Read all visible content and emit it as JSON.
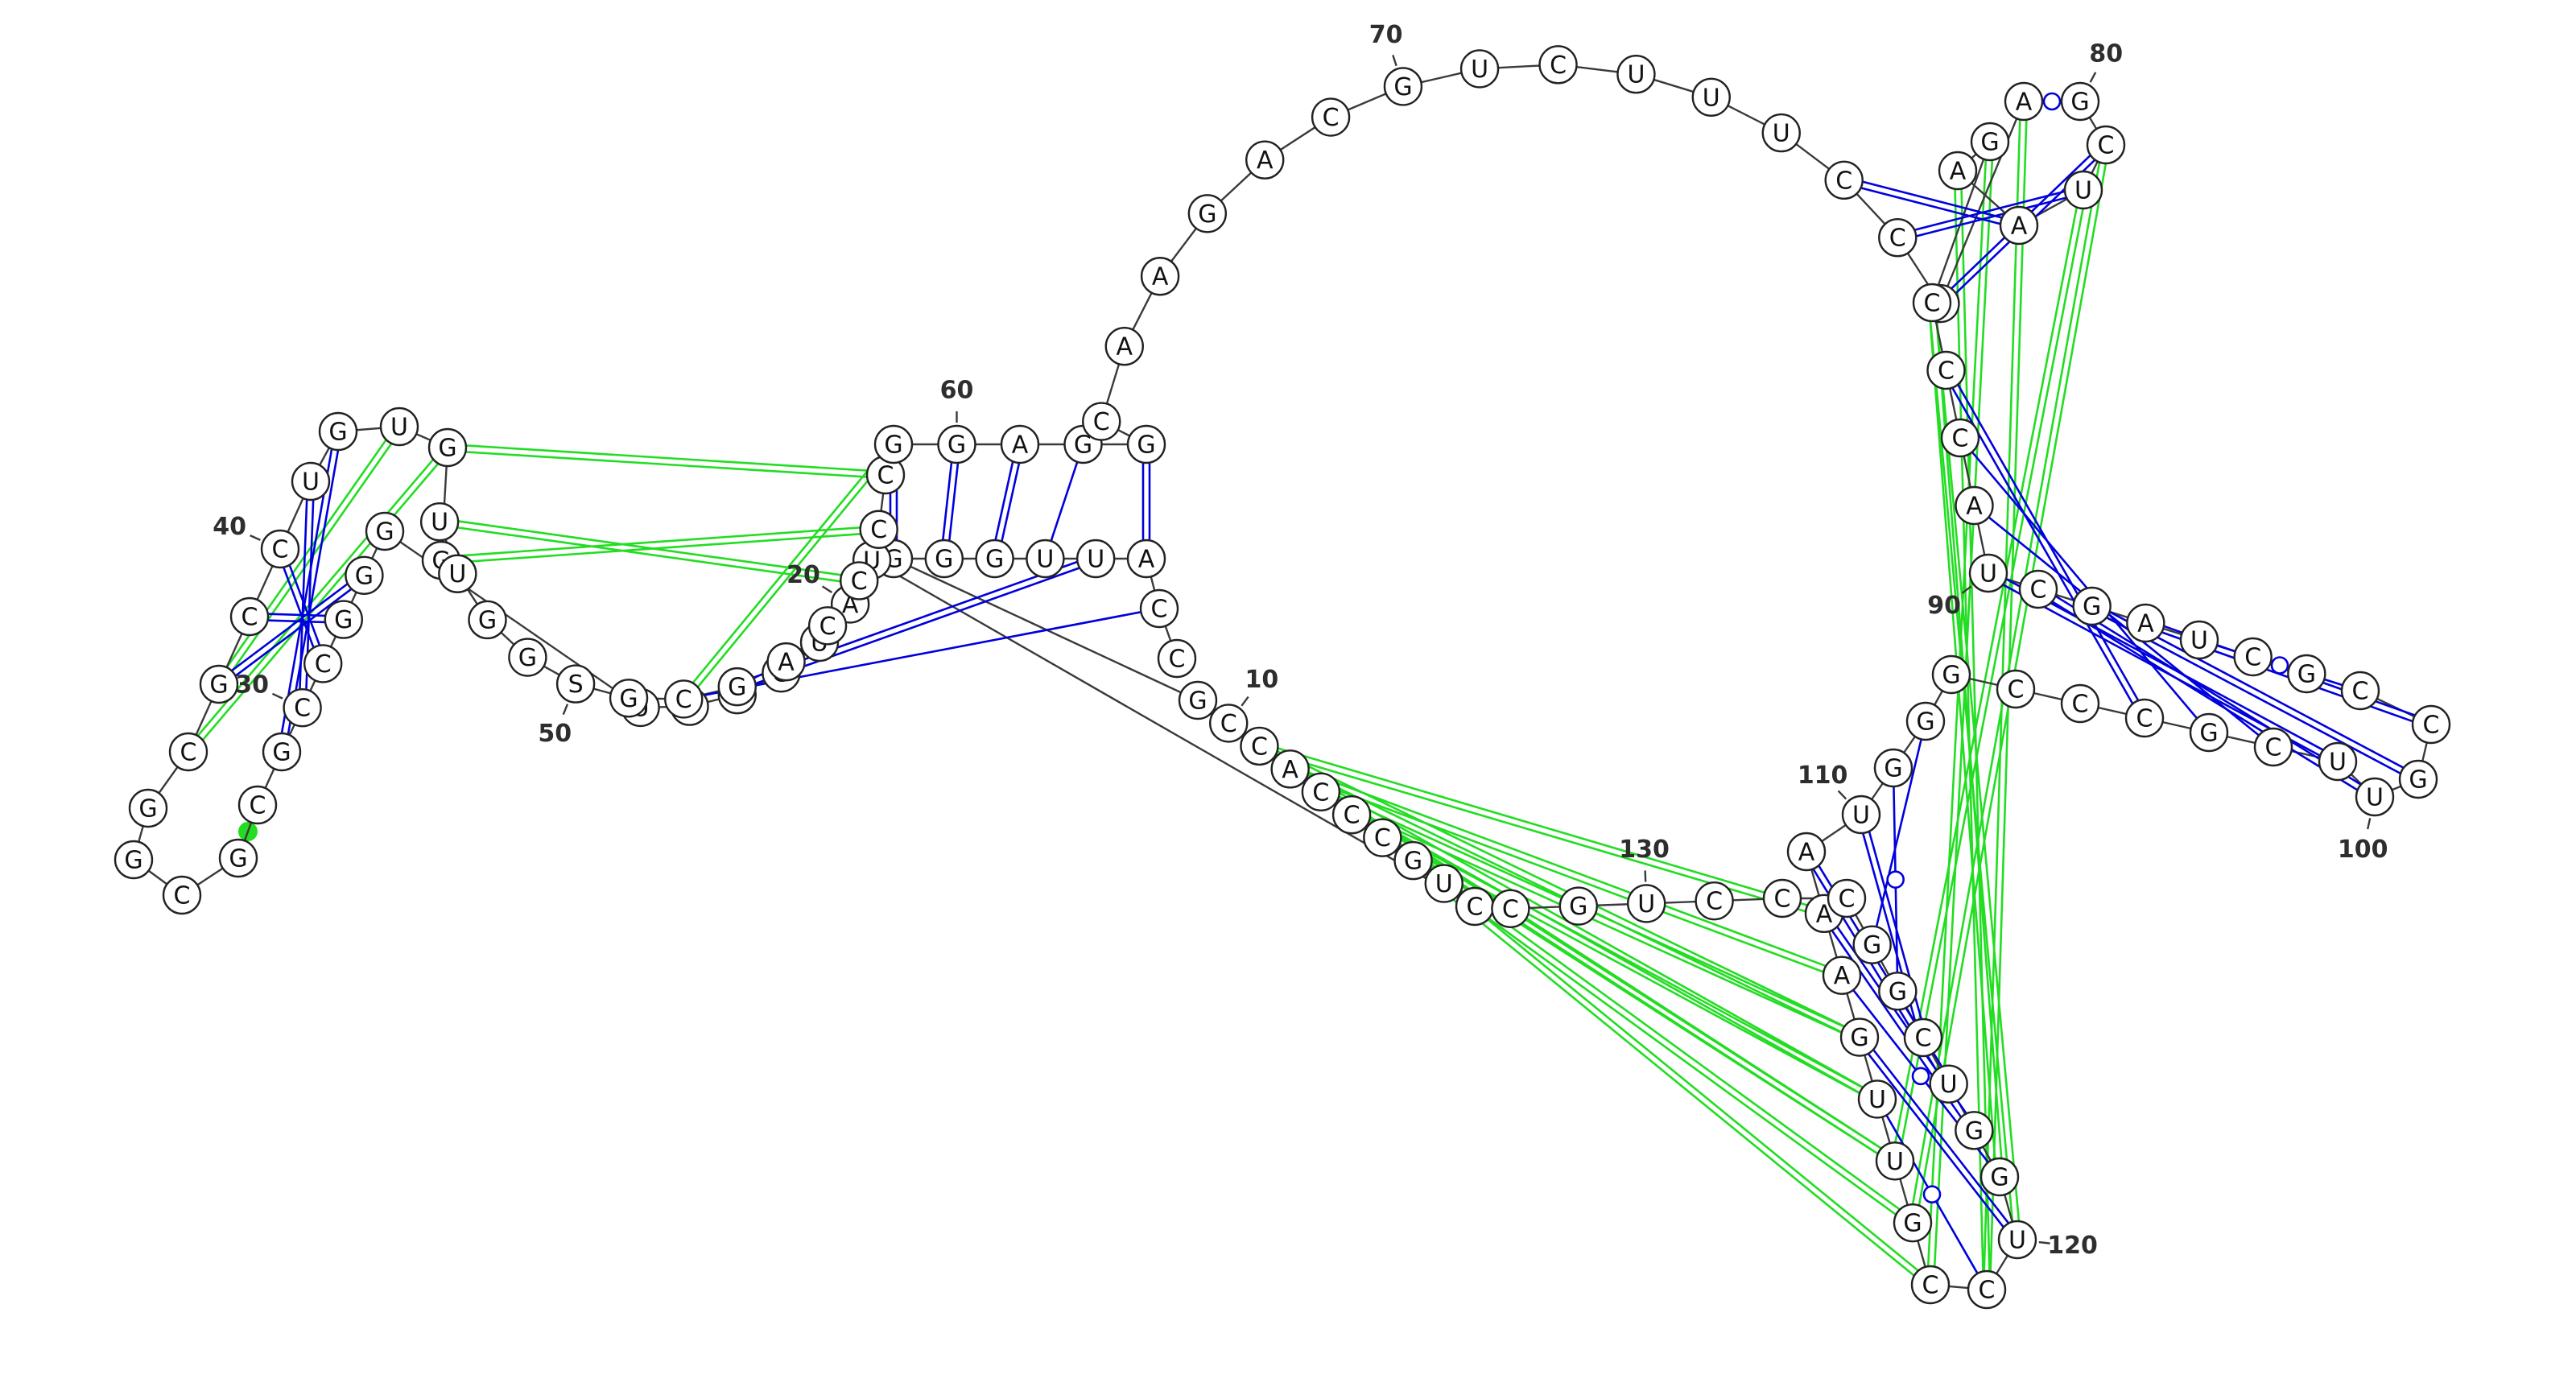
{
  "colors": {
    "background": "#ffffff",
    "backbone": "#3a3a3a",
    "secondary_pair": "#0000dd",
    "tertiary_pair": "#22dd22",
    "nucleotide_fill": "#ffffff",
    "nucleotide_stroke": "#222222"
  },
  "sequence": "CCAUUGGGGCCACCCGUCUAUGUUUGGGCCGCGCGGCGCCUGUGGUUGGSGCGACCCCGGAGGCAAGACGUCUUUCCUAGCUAAGCCCAUCGAUCGCCGUUCGCCCGGGUAAAGUUGCCUGGUCGGCCCUGC",
  "position_labels": [
    {
      "n": 10,
      "text": "10"
    },
    {
      "n": 20,
      "text": "20"
    },
    {
      "n": 30,
      "text": "30"
    },
    {
      "n": 40,
      "text": "40"
    },
    {
      "n": 50,
      "text": "50"
    },
    {
      "n": 60,
      "text": "60"
    },
    {
      "n": 70,
      "text": "70"
    },
    {
      "n": 80,
      "text": "80"
    },
    {
      "n": 90,
      "text": "90"
    },
    {
      "n": 100,
      "text": "100"
    },
    {
      "n": 110,
      "text": "110"
    },
    {
      "n": 120,
      "text": "120"
    },
    {
      "n": 130,
      "text": "130"
    }
  ],
  "secondary_pairs": [
    {
      "i": 2,
      "j": 52,
      "type": "single"
    },
    {
      "i": 3,
      "j": 63,
      "type": "double"
    },
    {
      "i": 4,
      "j": 53,
      "type": "double"
    },
    {
      "i": 5,
      "j": 62,
      "type": "single"
    },
    {
      "i": 6,
      "j": 61,
      "type": "double"
    },
    {
      "i": 7,
      "j": 60,
      "type": "double"
    },
    {
      "i": 8,
      "j": 59,
      "type": "double"
    },
    {
      "i": 27,
      "j": 38,
      "type": "double"
    },
    {
      "i": 28,
      "j": 39,
      "type": "double"
    },
    {
      "i": 29,
      "j": 40,
      "type": "double"
    },
    {
      "i": 30,
      "j": 41,
      "type": "double"
    },
    {
      "i": 31,
      "j": 42,
      "type": "double"
    },
    {
      "i": 76,
      "j": 83,
      "type": "double"
    },
    {
      "i": 77,
      "j": 82,
      "type": "double"
    },
    {
      "i": 78,
      "j": 81,
      "type": "double"
    },
    {
      "i": 79,
      "j": 80,
      "type": "wobble"
    },
    {
      "i": 87,
      "j": 104,
      "type": "double"
    },
    {
      "i": 88,
      "j": 103,
      "type": "single"
    },
    {
      "i": 89,
      "j": 102,
      "type": "single"
    },
    {
      "i": 90,
      "j": 101,
      "type": "double"
    },
    {
      "i": 91,
      "j": 100,
      "type": "double"
    },
    {
      "i": 92,
      "j": 99,
      "type": "double"
    },
    {
      "i": 93,
      "j": 98,
      "type": "double"
    },
    {
      "i": 94,
      "j": 97,
      "type": "wobble"
    },
    {
      "i": 108,
      "j": 126,
      "type": "single"
    },
    {
      "i": 109,
      "j": 125,
      "type": "wobble"
    },
    {
      "i": 110,
      "j": 124,
      "type": "double"
    },
    {
      "i": 111,
      "j": 123,
      "type": "double"
    },
    {
      "i": 112,
      "j": 122,
      "type": "double"
    },
    {
      "i": 113,
      "j": 121,
      "type": "wobble"
    },
    {
      "i": 114,
      "j": 120,
      "type": "double"
    },
    {
      "i": 115,
      "j": 119,
      "type": "wobble"
    }
  ],
  "tertiary_pairs": [
    {
      "i": 11,
      "j": 112,
      "type": "double"
    },
    {
      "i": 11,
      "j": 114,
      "type": "double"
    },
    {
      "i": 12,
      "j": 113,
      "type": "double"
    },
    {
      "i": 12,
      "j": 115,
      "type": "double"
    },
    {
      "i": 12,
      "j": 116,
      "type": "double"
    },
    {
      "i": 13,
      "j": 114,
      "type": "double"
    },
    {
      "i": 13,
      "j": 116,
      "type": "double"
    },
    {
      "i": 14,
      "j": 117,
      "type": "double"
    },
    {
      "i": 15,
      "j": 118,
      "type": "double"
    },
    {
      "i": 14,
      "j": 115,
      "type": "double"
    },
    {
      "i": 37,
      "j": 44,
      "type": "double"
    },
    {
      "i": 38,
      "j": 43,
      "type": "double"
    },
    {
      "i": 45,
      "j": 57,
      "type": "double"
    },
    {
      "i": 46,
      "j": 56,
      "type": "double"
    },
    {
      "i": 44,
      "j": 58,
      "type": "double"
    },
    {
      "i": 52,
      "j": 59,
      "type": "double"
    },
    {
      "i": 84,
      "j": 119,
      "type": "double"
    },
    {
      "i": 85,
      "j": 118,
      "type": "double"
    },
    {
      "i": 86,
      "j": 120,
      "type": "double"
    },
    {
      "i": 86,
      "j": 121,
      "type": "double"
    },
    {
      "i": 82,
      "j": 116,
      "type": "double"
    },
    {
      "i": 81,
      "j": 117,
      "type": "double"
    },
    {
      "i": 79,
      "j": 119,
      "type": "double"
    },
    {
      "i": 32,
      "j": 33,
      "type": "dot"
    }
  ]
}
